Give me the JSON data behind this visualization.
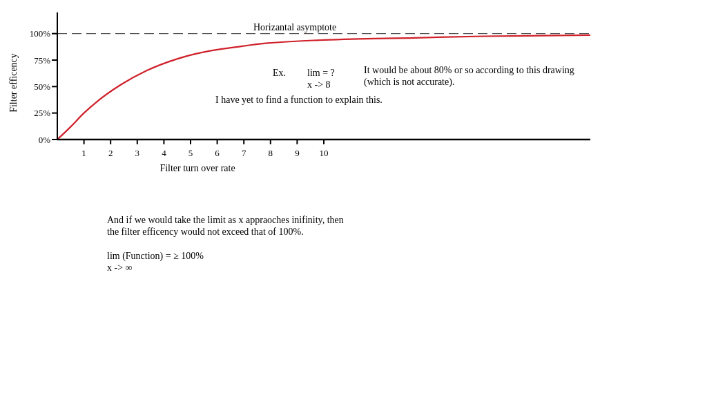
{
  "chart_data": {
    "type": "line",
    "xlabel": "Filter turn over rate",
    "ylabel": "Filter efficency",
    "x": [
      0,
      0.5,
      1,
      1.5,
      2.4,
      3.35,
      4.75,
      5.8,
      6.9,
      7.9,
      10,
      13.4,
      16,
      20
    ],
    "series": [
      {
        "color": "#d0202a",
        "values": [
          0,
          12,
          25,
          36,
          52,
          65,
          78,
          84,
          88,
          91,
          94,
          96,
          97.5,
          98.5
        ]
      }
    ],
    "xlim": [
      0,
      20
    ],
    "xticks": [
      1,
      2,
      3,
      4,
      5,
      6,
      7,
      8,
      9,
      10
    ],
    "ylim": [
      0,
      120
    ],
    "yticks": [
      {
        "value": 0,
        "label": "0%"
      },
      {
        "value": 25,
        "label": "25%"
      },
      {
        "value": 50,
        "label": "50%"
      },
      {
        "value": 75,
        "label": "75%"
      },
      {
        "value": 100,
        "label": "100%"
      }
    ],
    "ref_lines": [
      {
        "axis": "y",
        "value": 100,
        "label": "Horizantal asymptote",
        "color": "#555555",
        "line_style": "dashed"
      }
    ],
    "annotations": [
      "Ex.",
      "lim = ?",
      "x -> 8",
      "It would be about 80% or so according to this drawing",
      "(which is not accurate).",
      "I have yet to find a function to explain this.",
      "And if we would take the limit as x appraoches inifinity, then",
      "the filter efficency would not exceed that of 100%.",
      "lim (Function) = ≥ 100%",
      "x -> ∞"
    ],
    "grid": false,
    "line_style": "solid"
  }
}
